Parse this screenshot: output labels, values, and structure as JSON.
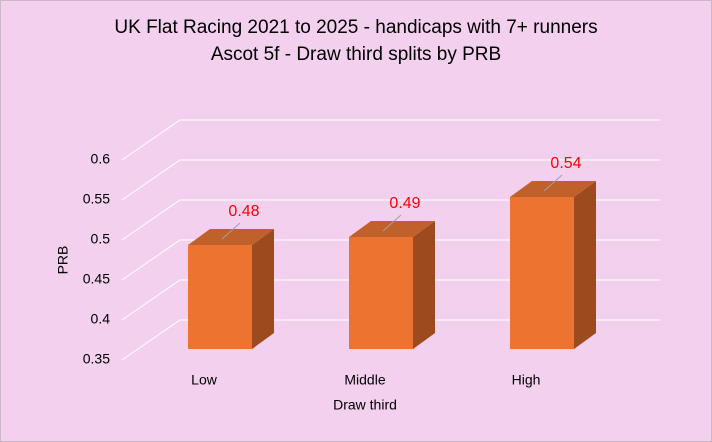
{
  "chart_data": {
    "type": "bar3d",
    "title": "UK Flat Racing 2021 to 2025 - handicaps with 7+ runners",
    "subtitle": "Ascot 5f - Draw third splits by PRB",
    "x_label": "Draw third",
    "y_label": "PRB",
    "categories": [
      "Low",
      "Middle",
      "High"
    ],
    "values": [
      0.48,
      0.49,
      0.54
    ],
    "color": "#ed7430",
    "label_color": "#ff0000",
    "ylim": [
      0.35,
      0.6
    ],
    "yticks": [
      0.35,
      0.4,
      0.45,
      0.5,
      0.55,
      0.6
    ],
    "grid": true
  }
}
